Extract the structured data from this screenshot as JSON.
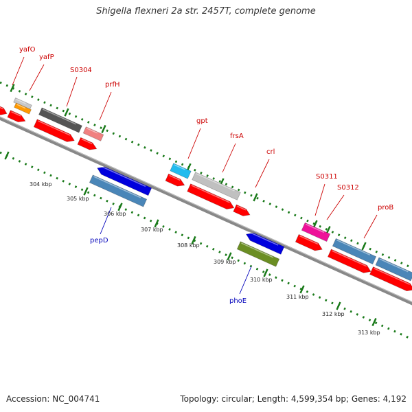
{
  "title": "Shigella flexneri 2a str. 2457T, complete genome",
  "footer": {
    "accession": "Accession: NC_004741",
    "summary": "Topology: circular; Length: 4,599,354 bp; Genes: 4,192"
  },
  "colors": {
    "backbone": "#888888",
    "tick": "#1a7a1a",
    "label_forward": "#cc0000",
    "label_reverse": "#0000bb",
    "cds": "#ff0000"
  },
  "kbp_labels": [
    "304 kbp",
    "305 kbp",
    "306 kbp",
    "307 kbp",
    "308 kbp",
    "309 kbp",
    "310 kbp",
    "311 kbp",
    "312 kbp",
    "313 kbp"
  ],
  "genes": [
    {
      "name": "yafO",
      "strand": "forward"
    },
    {
      "name": "yafP",
      "strand": "forward"
    },
    {
      "name": "S0304",
      "strand": "forward"
    },
    {
      "name": "prfH",
      "strand": "forward"
    },
    {
      "name": "gpt",
      "strand": "forward"
    },
    {
      "name": "frsA",
      "strand": "forward"
    },
    {
      "name": "crl",
      "strand": "forward"
    },
    {
      "name": "S0311",
      "strand": "forward"
    },
    {
      "name": "S0312",
      "strand": "forward"
    },
    {
      "name": "proB",
      "strand": "forward"
    },
    {
      "name": "pepD",
      "strand": "reverse"
    },
    {
      "name": "phoE",
      "strand": "reverse"
    }
  ]
}
